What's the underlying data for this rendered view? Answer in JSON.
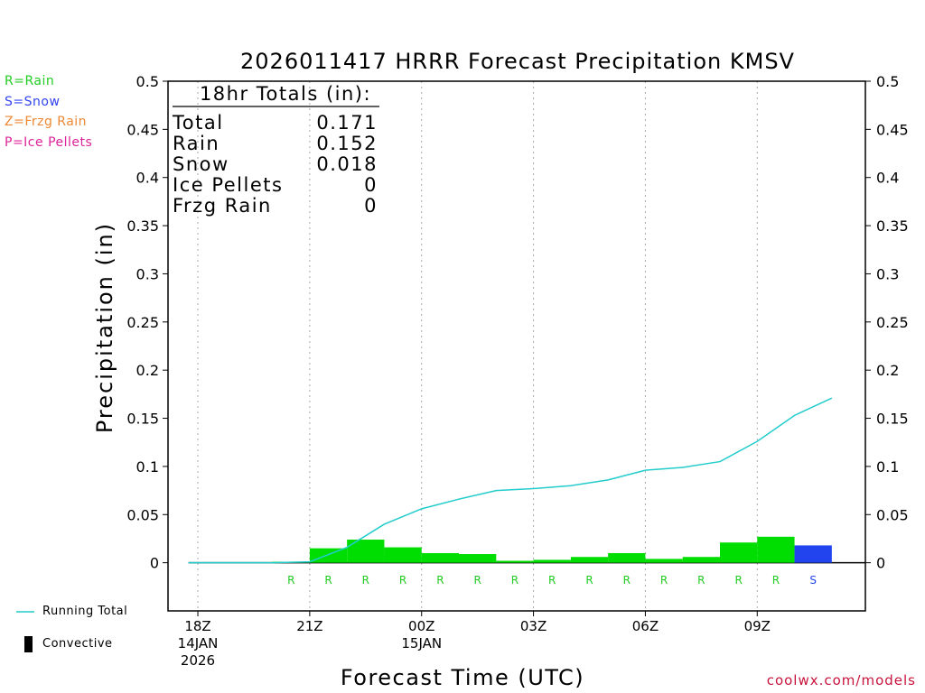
{
  "title": "2026011417 HRRR Forecast Precipitation KMSV",
  "type_legend": [
    {
      "label": "R=Rain",
      "color": "#22cc22"
    },
    {
      "label": "S=Snow",
      "color": "#3344ee"
    },
    {
      "label": "Z=Frzg Rain",
      "color": "#ee8833"
    },
    {
      "label": "P=Ice Pellets",
      "color": "#dd2299"
    }
  ],
  "totals": {
    "heading": "18hr Totals (in):",
    "rows": [
      {
        "label": "Total",
        "value": "0.171"
      },
      {
        "label": "Rain",
        "value": "0.152"
      },
      {
        "label": "Snow",
        "value": "0.018"
      },
      {
        "label": "Ice Pellets",
        "value": "0"
      },
      {
        "label": "Frzg Rain",
        "value": "0"
      }
    ]
  },
  "bottom_legend": {
    "running_total": "Running Total",
    "convective": "Convective"
  },
  "credit": "coolwx.com/models",
  "chart_data": {
    "type": "bar",
    "ylabel": "Precipitation (in)",
    "xlabel": "Forecast Time (UTC)",
    "ylim": [
      -0.05,
      0.5
    ],
    "yticks": [
      "0",
      "0.05",
      "0.1",
      "0.15",
      "0.2",
      "0.25",
      "0.3",
      "0.35",
      "0.4",
      "0.45",
      "0.5"
    ],
    "ytick_values": [
      0,
      0.05,
      0.1,
      0.15,
      0.2,
      0.25,
      0.3,
      0.35,
      0.4,
      0.45,
      0.5
    ],
    "xlim": [
      -0.8,
      17.9
    ],
    "x_ticks": [
      {
        "x": 0,
        "lines": [
          "18Z",
          "14JAN",
          "2026"
        ]
      },
      {
        "x": 3,
        "lines": [
          "21Z"
        ]
      },
      {
        "x": 6,
        "lines": [
          "00Z",
          "15JAN"
        ]
      },
      {
        "x": 9,
        "lines": [
          "03Z"
        ]
      },
      {
        "x": 12,
        "lines": [
          "06Z"
        ]
      },
      {
        "x": 15,
        "lines": [
          "09Z"
        ]
      }
    ],
    "grid": "vertical dotted at x ticks",
    "bars": [
      {
        "hour": 1,
        "value": 0,
        "type": ""
      },
      {
        "hour": 2,
        "value": 0,
        "type": ""
      },
      {
        "hour": 3,
        "value": 0.001,
        "type": "R"
      },
      {
        "hour": 4,
        "value": 0.015,
        "type": "R"
      },
      {
        "hour": 5,
        "value": 0.024,
        "type": "R"
      },
      {
        "hour": 6,
        "value": 0.016,
        "type": "R"
      },
      {
        "hour": 7,
        "value": 0.01,
        "type": "R"
      },
      {
        "hour": 8,
        "value": 0.009,
        "type": "R"
      },
      {
        "hour": 9,
        "value": 0.002,
        "type": "R"
      },
      {
        "hour": 10,
        "value": 0.003,
        "type": "R"
      },
      {
        "hour": 11,
        "value": 0.006,
        "type": "R"
      },
      {
        "hour": 12,
        "value": 0.01,
        "type": "R"
      },
      {
        "hour": 13,
        "value": 0.004,
        "type": "R"
      },
      {
        "hour": 14,
        "value": 0.006,
        "type": "R"
      },
      {
        "hour": 15,
        "value": 0.021,
        "type": "R"
      },
      {
        "hour": 16,
        "value": 0.027,
        "type": "R"
      },
      {
        "hour": 17,
        "value": 0.018,
        "type": "S"
      }
    ],
    "running_total": {
      "name": "Running Total",
      "x": [
        -0.25,
        1,
        2,
        3,
        4,
        5,
        6,
        7,
        8,
        9,
        10,
        11,
        12,
        13,
        14,
        15,
        16,
        17
      ],
      "y": [
        0,
        0,
        0,
        0.001,
        0.016,
        0.04,
        0.056,
        0.066,
        0.075,
        0.077,
        0.08,
        0.086,
        0.096,
        0.099,
        0.105,
        0.126,
        0.153,
        0.171
      ]
    },
    "colors": {
      "R": "#00dd00",
      "S": "#2244ee",
      "line": "#22cccc",
      "grid": "#aaaaaa"
    }
  }
}
